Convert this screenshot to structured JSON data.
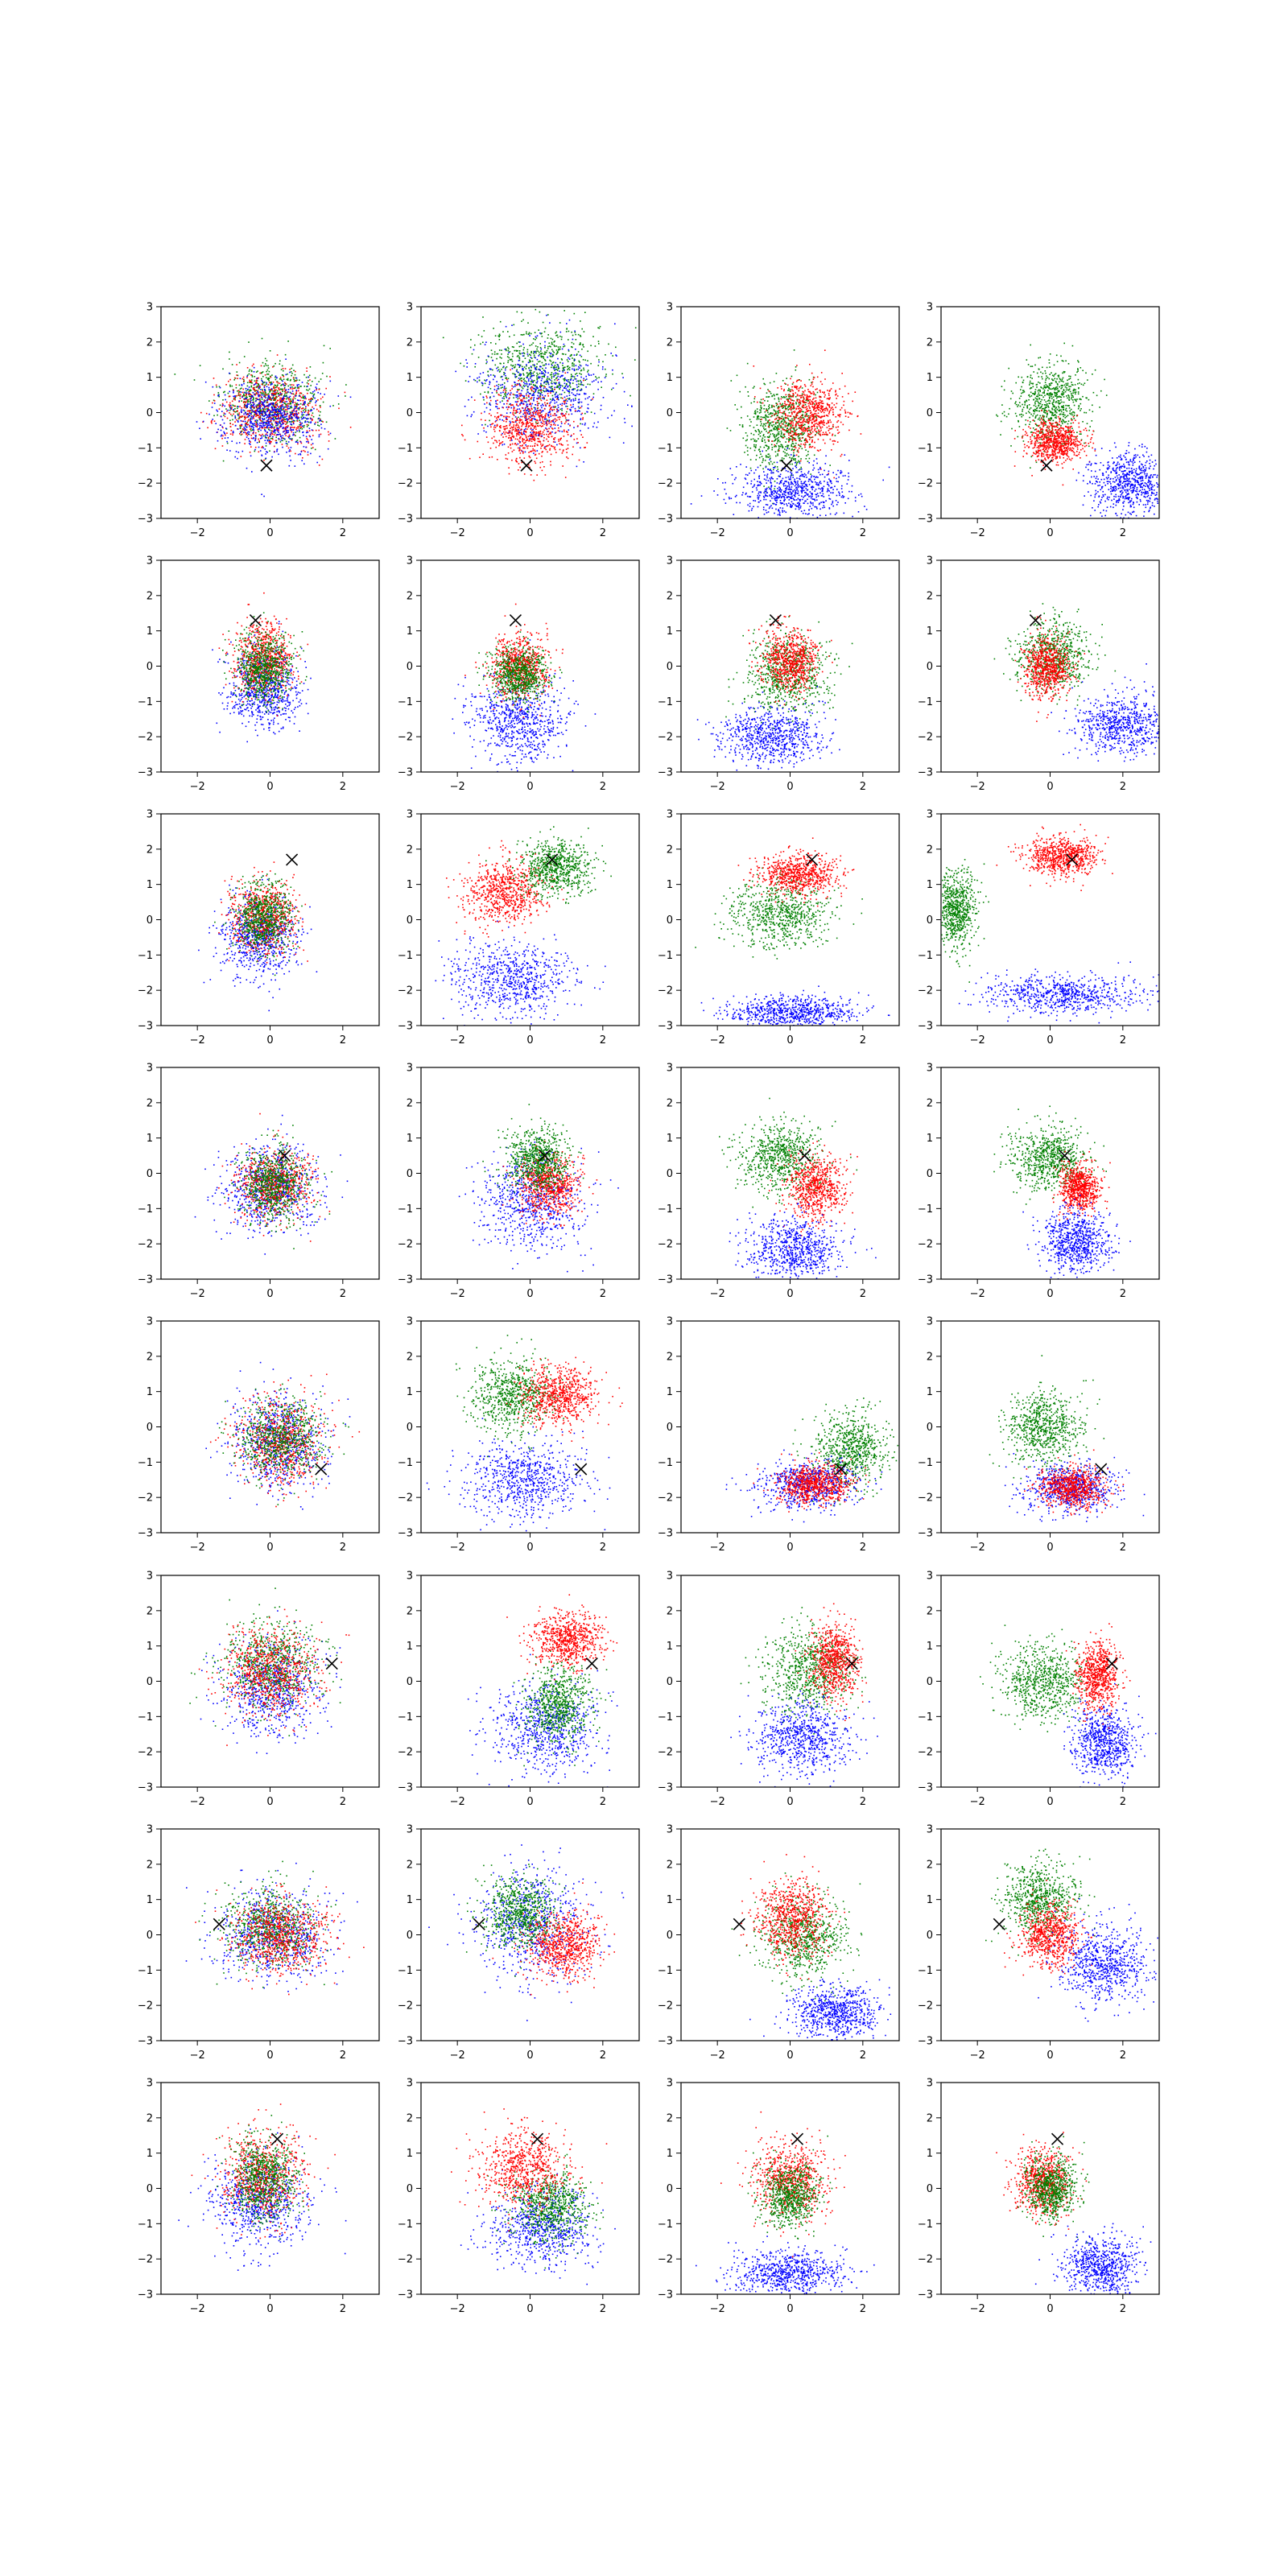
{
  "chart_data": {
    "type": "scatter",
    "layout": {
      "rows": 8,
      "cols": 4
    },
    "xlim": [
      -3,
      3
    ],
    "ylim": [
      -3,
      3
    ],
    "xticks": [
      -2,
      0,
      2
    ],
    "yticks": [
      -3,
      -2,
      -1,
      0,
      1,
      2,
      3
    ],
    "tick_labels": {
      "x": [
        "−2",
        "0",
        "2"
      ],
      "y": [
        "−3",
        "−2",
        "−1",
        "0",
        "1",
        "2",
        "3"
      ]
    },
    "grid": false,
    "legend": "none",
    "series_colors": {
      "red": "#ff0000",
      "green": "#008000",
      "blue": "#0000ff",
      "marker": "#000000"
    },
    "marker_symbol": "×",
    "rows": [
      {
        "marker": [
          -0.1,
          -1.5
        ],
        "panels": [
          {
            "clusters": [
              {
                "c": "green",
                "cx": 0,
                "cy": 0.3,
                "rx": 1.2,
                "ry": 1.0
              },
              {
                "c": "red",
                "cx": 0,
                "cy": 0.1,
                "rx": 1.2,
                "ry": 1.0
              },
              {
                "c": "blue",
                "cx": 0,
                "cy": -0.1,
                "rx": 1.2,
                "ry": 1.0
              }
            ]
          },
          {
            "clusters": [
              {
                "c": "green",
                "cx": 0.3,
                "cy": 1.3,
                "rx": 1.6,
                "ry": 1.1
              },
              {
                "c": "blue",
                "cx": 0.3,
                "cy": 0.5,
                "rx": 1.6,
                "ry": 1.3
              },
              {
                "c": "red",
                "cx": 0,
                "cy": -0.4,
                "rx": 1.1,
                "ry": 1.0
              }
            ]
          },
          {
            "clusters": [
              {
                "c": "green",
                "cx": -0.3,
                "cy": -0.4,
                "rx": 0.9,
                "ry": 1.1
              },
              {
                "c": "red",
                "cx": 0.5,
                "cy": 0,
                "rx": 0.9,
                "ry": 0.9
              },
              {
                "c": "blue",
                "cx": 0,
                "cy": -2.2,
                "rx": 1.5,
                "ry": 0.7
              }
            ]
          },
          {
            "clusters": [
              {
                "c": "green",
                "cx": 0,
                "cy": 0.3,
                "rx": 0.9,
                "ry": 1.0
              },
              {
                "c": "red",
                "cx": 0.1,
                "cy": -0.8,
                "rx": 0.7,
                "ry": 0.5
              },
              {
                "c": "blue",
                "cx": 2.2,
                "cy": -2,
                "rx": 1.0,
                "ry": 0.8
              }
            ]
          }
        ]
      },
      {
        "marker": [
          -0.4,
          1.3
        ],
        "panels": [
          {
            "clusters": [
              {
                "c": "blue",
                "cx": -0.2,
                "cy": -0.6,
                "rx": 0.9,
                "ry": 1.0
              },
              {
                "c": "red",
                "cx": -0.2,
                "cy": 0.2,
                "rx": 0.7,
                "ry": 0.9
              },
              {
                "c": "green",
                "cx": -0.2,
                "cy": 0,
                "rx": 0.7,
                "ry": 0.9
              }
            ]
          },
          {
            "clusters": [
              {
                "c": "blue",
                "cx": -0.3,
                "cy": -1.5,
                "rx": 1.2,
                "ry": 1.1
              },
              {
                "c": "red",
                "cx": -0.3,
                "cy": 0,
                "rx": 0.7,
                "ry": 0.8
              },
              {
                "c": "green",
                "cx": -0.3,
                "cy": -0.2,
                "rx": 0.7,
                "ry": 0.7
              }
            ]
          },
          {
            "clusters": [
              {
                "c": "green",
                "cx": -0.1,
                "cy": -0.2,
                "rx": 1.1,
                "ry": 1.0
              },
              {
                "c": "red",
                "cx": 0,
                "cy": 0.2,
                "rx": 0.7,
                "ry": 0.8
              },
              {
                "c": "blue",
                "cx": -0.5,
                "cy": -2,
                "rx": 1.3,
                "ry": 0.7
              }
            ]
          },
          {
            "clusters": [
              {
                "c": "green",
                "cx": 0.1,
                "cy": 0.3,
                "rx": 0.9,
                "ry": 0.9
              },
              {
                "c": "red",
                "cx": -0.1,
                "cy": 0,
                "rx": 0.6,
                "ry": 0.8
              },
              {
                "c": "blue",
                "cx": 2,
                "cy": -1.6,
                "rx": 1.2,
                "ry": 0.8
              }
            ]
          }
        ]
      },
      {
        "marker": [
          0.6,
          1.7
        ],
        "panels": [
          {
            "clusters": [
              {
                "c": "blue",
                "cx": -0.3,
                "cy": -0.5,
                "rx": 1.0,
                "ry": 1.0
              },
              {
                "c": "red",
                "cx": -0.2,
                "cy": 0.1,
                "rx": 0.8,
                "ry": 0.9
              },
              {
                "c": "green",
                "cx": -0.2,
                "cy": 0.1,
                "rx": 0.7,
                "ry": 0.9
              }
            ]
          },
          {
            "clusters": [
              {
                "c": "blue",
                "cx": -0.5,
                "cy": -1.7,
                "rx": 1.5,
                "ry": 1.0
              },
              {
                "c": "red",
                "cx": -0.7,
                "cy": 0.8,
                "rx": 1.0,
                "ry": 0.8
              },
              {
                "c": "green",
                "cx": 0.7,
                "cy": 1.5,
                "rx": 0.9,
                "ry": 0.7
              }
            ]
          },
          {
            "clusters": [
              {
                "c": "green",
                "cx": -0.3,
                "cy": 0.2,
                "rx": 1.2,
                "ry": 0.9
              },
              {
                "c": "red",
                "cx": 0.2,
                "cy": 1.3,
                "rx": 1.0,
                "ry": 0.5
              },
              {
                "c": "blue",
                "cx": 0,
                "cy": -2.6,
                "rx": 1.6,
                "ry": 0.4
              }
            ]
          },
          {
            "clusters": [
              {
                "c": "green",
                "cx": -2.6,
                "cy": 0.3,
                "rx": 0.5,
                "ry": 1.0
              },
              {
                "c": "red",
                "cx": 0.3,
                "cy": 1.8,
                "rx": 0.9,
                "ry": 0.5
              },
              {
                "c": "blue",
                "cx": 0.3,
                "cy": -2.1,
                "rx": 2.0,
                "ry": 0.5
              }
            ]
          }
        ]
      },
      {
        "marker": [
          0.4,
          0.5
        ],
        "panels": [
          {
            "clusters": [
              {
                "c": "blue",
                "cx": 0,
                "cy": -0.4,
                "rx": 1.2,
                "ry": 1.1
              },
              {
                "c": "red",
                "cx": 0.1,
                "cy": -0.3,
                "rx": 0.9,
                "ry": 0.9
              },
              {
                "c": "green",
                "cx": 0.1,
                "cy": -0.3,
                "rx": 0.8,
                "ry": 0.9
              }
            ]
          },
          {
            "clusters": [
              {
                "c": "blue",
                "cx": 0,
                "cy": -0.8,
                "rx": 1.3,
                "ry": 1.2
              },
              {
                "c": "red",
                "cx": 0.5,
                "cy": -0.3,
                "rx": 0.8,
                "ry": 0.8
              },
              {
                "c": "green",
                "cx": 0.2,
                "cy": 0.4,
                "rx": 0.8,
                "ry": 0.8
              }
            ]
          },
          {
            "clusters": [
              {
                "c": "green",
                "cx": -0.3,
                "cy": 0.5,
                "rx": 1.0,
                "ry": 0.9
              },
              {
                "c": "red",
                "cx": 0.7,
                "cy": -0.4,
                "rx": 0.7,
                "ry": 0.8
              },
              {
                "c": "blue",
                "cx": 0.1,
                "cy": -2.1,
                "rx": 1.2,
                "ry": 0.8
              }
            ]
          },
          {
            "clusters": [
              {
                "c": "green",
                "cx": 0,
                "cy": 0.4,
                "rx": 0.9,
                "ry": 0.8
              },
              {
                "c": "red",
                "cx": 0.8,
                "cy": -0.4,
                "rx": 0.5,
                "ry": 0.6
              },
              {
                "c": "blue",
                "cx": 0.7,
                "cy": -1.9,
                "rx": 0.9,
                "ry": 0.8
              }
            ]
          }
        ]
      },
      {
        "marker": [
          1.4,
          -1.2
        ],
        "panels": [
          {
            "clusters": [
              {
                "c": "blue",
                "cx": 0.2,
                "cy": -0.4,
                "rx": 1.2,
                "ry": 1.3
              },
              {
                "c": "red",
                "cx": 0.3,
                "cy": -0.4,
                "rx": 1.1,
                "ry": 1.1
              },
              {
                "c": "green",
                "cx": 0.3,
                "cy": -0.3,
                "rx": 1.1,
                "ry": 1.0
              }
            ]
          },
          {
            "clusters": [
              {
                "c": "blue",
                "cx": -0.2,
                "cy": -1.5,
                "rx": 1.5,
                "ry": 1.0
              },
              {
                "c": "green",
                "cx": -0.5,
                "cy": 0.9,
                "rx": 1.0,
                "ry": 0.9
              },
              {
                "c": "red",
                "cx": 0.8,
                "cy": 0.9,
                "rx": 0.9,
                "ry": 0.8
              }
            ]
          },
          {
            "clusters": [
              {
                "c": "green",
                "cx": 1.7,
                "cy": -0.6,
                "rx": 0.9,
                "ry": 1.0
              },
              {
                "c": "blue",
                "cx": 0.5,
                "cy": -1.6,
                "rx": 1.2,
                "ry": 0.6
              },
              {
                "c": "red",
                "cx": 0.7,
                "cy": -1.6,
                "rx": 0.9,
                "ry": 0.5
              }
            ]
          },
          {
            "clusters": [
              {
                "c": "green",
                "cx": -0.2,
                "cy": 0,
                "rx": 1.0,
                "ry": 0.9
              },
              {
                "c": "blue",
                "cx": 0.5,
                "cy": -1.7,
                "rx": 1.1,
                "ry": 0.6
              },
              {
                "c": "red",
                "cx": 0.6,
                "cy": -1.7,
                "rx": 0.8,
                "ry": 0.5
              }
            ]
          }
        ]
      },
      {
        "marker": [
          1.7,
          0.5
        ],
        "panels": [
          {
            "clusters": [
              {
                "c": "blue",
                "cx": 0,
                "cy": -0.2,
                "rx": 1.3,
                "ry": 1.2
              },
              {
                "c": "green",
                "cx": 0,
                "cy": 0.5,
                "rx": 1.2,
                "ry": 1.1
              },
              {
                "c": "red",
                "cx": 0,
                "cy": 0.3,
                "rx": 1.2,
                "ry": 1.1
              }
            ]
          },
          {
            "clusters": [
              {
                "c": "blue",
                "cx": 0.4,
                "cy": -1.3,
                "rx": 1.3,
                "ry": 1.1
              },
              {
                "c": "green",
                "cx": 0.8,
                "cy": -0.6,
                "rx": 0.8,
                "ry": 1.0
              },
              {
                "c": "red",
                "cx": 1.0,
                "cy": 1.2,
                "rx": 0.9,
                "ry": 0.7
              }
            ]
          },
          {
            "clusters": [
              {
                "c": "green",
                "cx": 0.5,
                "cy": 0.3,
                "rx": 1.1,
                "ry": 1.1
              },
              {
                "c": "blue",
                "cx": 0.3,
                "cy": -1.6,
                "rx": 1.2,
                "ry": 0.9
              },
              {
                "c": "red",
                "cx": 1.2,
                "cy": 0.6,
                "rx": 0.6,
                "ry": 0.9
              }
            ]
          },
          {
            "clusters": [
              {
                "c": "green",
                "cx": -0.2,
                "cy": 0,
                "rx": 1.1,
                "ry": 1.0
              },
              {
                "c": "blue",
                "cx": 1.5,
                "cy": -1.7,
                "rx": 0.8,
                "ry": 0.9
              },
              {
                "c": "red",
                "cx": 1.3,
                "cy": 0.2,
                "rx": 0.5,
                "ry": 0.9
              }
            ]
          }
        ]
      },
      {
        "marker": [
          -1.4,
          0.3
        ],
        "panels": [
          {
            "clusters": [
              {
                "c": "blue",
                "cx": 0,
                "cy": 0,
                "rx": 1.4,
                "ry": 1.1
              },
              {
                "c": "green",
                "cx": 0,
                "cy": 0.2,
                "rx": 1.2,
                "ry": 1.0
              },
              {
                "c": "red",
                "cx": 0.3,
                "cy": 0,
                "rx": 1.2,
                "ry": 1.0
              }
            ]
          },
          {
            "clusters": [
              {
                "c": "blue",
                "cx": 0,
                "cy": 0.3,
                "rx": 1.4,
                "ry": 1.4
              },
              {
                "c": "green",
                "cx": -0.3,
                "cy": 0.6,
                "rx": 0.9,
                "ry": 0.9
              },
              {
                "c": "red",
                "cx": 0.9,
                "cy": -0.3,
                "rx": 0.9,
                "ry": 0.8
              }
            ]
          },
          {
            "clusters": [
              {
                "c": "green",
                "cx": 0.4,
                "cy": -0.1,
                "rx": 1.1,
                "ry": 1.0
              },
              {
                "c": "red",
                "cx": 0,
                "cy": 0.5,
                "rx": 0.9,
                "ry": 1.0
              },
              {
                "c": "blue",
                "cx": 1.2,
                "cy": -2.2,
                "rx": 1.1,
                "ry": 0.7
              }
            ]
          },
          {
            "clusters": [
              {
                "c": "green",
                "cx": -0.3,
                "cy": 1,
                "rx": 0.9,
                "ry": 0.9
              },
              {
                "c": "red",
                "cx": 0,
                "cy": 0,
                "rx": 0.7,
                "ry": 0.8
              },
              {
                "c": "blue",
                "cx": 1.5,
                "cy": -0.8,
                "rx": 1.1,
                "ry": 1.0
              }
            ]
          }
        ]
      },
      {
        "marker": [
          0.2,
          1.4
        ],
        "panels": [
          {
            "clusters": [
              {
                "c": "blue",
                "cx": -0.3,
                "cy": -0.4,
                "rx": 1.2,
                "ry": 1.1
              },
              {
                "c": "red",
                "cx": -0.2,
                "cy": 0.4,
                "rx": 1.0,
                "ry": 1.1
              },
              {
                "c": "green",
                "cx": -0.2,
                "cy": 0.3,
                "rx": 0.8,
                "ry": 1.1
              }
            ]
          },
          {
            "clusters": [
              {
                "c": "blue",
                "cx": 0.3,
                "cy": -1.1,
                "rx": 1.3,
                "ry": 1.0
              },
              {
                "c": "green",
                "cx": 0.5,
                "cy": -0.5,
                "rx": 1.0,
                "ry": 0.9
              },
              {
                "c": "red",
                "cx": -0.2,
                "cy": 0.6,
                "rx": 1.1,
                "ry": 1.0
              }
            ]
          },
          {
            "clusters": [
              {
                "c": "red",
                "cx": 0,
                "cy": 0.3,
                "rx": 0.9,
                "ry": 1.0
              },
              {
                "c": "green",
                "cx": 0,
                "cy": -0.2,
                "rx": 0.7,
                "ry": 0.8
              },
              {
                "c": "blue",
                "cx": 0,
                "cy": -2.4,
                "rx": 1.4,
                "ry": 0.6
              }
            ]
          },
          {
            "clusters": [
              {
                "c": "red",
                "cx": -0.2,
                "cy": 0.2,
                "rx": 0.7,
                "ry": 0.8
              },
              {
                "c": "green",
                "cx": 0,
                "cy": 0,
                "rx": 0.6,
                "ry": 0.8
              },
              {
                "c": "blue",
                "cx": 1.4,
                "cy": -2.2,
                "rx": 0.9,
                "ry": 0.8
              }
            ]
          }
        ]
      }
    ]
  }
}
